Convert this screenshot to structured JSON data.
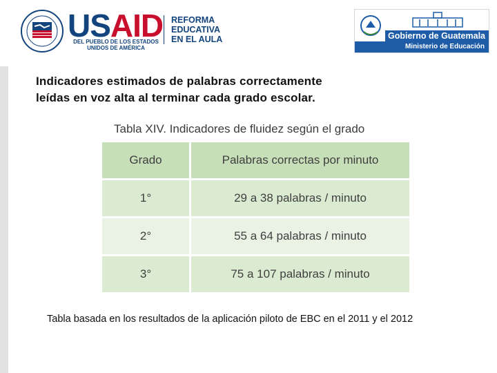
{
  "header": {
    "usaid": {
      "word_us": "US",
      "word_aid": "AID",
      "subtitle_line1": "DEL PUEBLO DE LOS ESTADOS",
      "subtitle_line2": "UNIDOS DE AMÉRICA",
      "seal_icon": "usaid-handshake-seal-icon"
    },
    "program": {
      "line1": "REFORMA",
      "line2": "EDUCATIVA",
      "line3": "EN EL AULA"
    },
    "government": {
      "title": "Gobierno de Guatemala",
      "subtitle": "Ministerio de Educación",
      "crest_icon": "guatemala-coat-of-arms-icon",
      "building_icon": "palace-building-icon"
    }
  },
  "heading": {
    "line1": "Indicadores estimados de palabras correctamente",
    "line2": "leídas en voz alta al terminar cada grado escolar."
  },
  "table": {
    "caption": "Tabla XIV. Indicadores de fluidez según el grado",
    "headers": [
      "Grado",
      "Palabras correctas por minuto"
    ],
    "rows": [
      [
        "1°",
        "29 a 38 palabras / minuto"
      ],
      [
        "2°",
        "55 a 64 palabras / minuto"
      ],
      [
        "3°",
        "75 a 107 palabras / minuto"
      ]
    ]
  },
  "note": "Tabla basada en los resultados de la aplicación piloto de EBC en el 2011 y el 2012",
  "colors": {
    "usaid_blue": "#13447d",
    "usaid_red": "#c8102e",
    "gov_blue": "#1e5ca8",
    "table_header": "#c7dfb8",
    "table_row_odd": "#dbebd1",
    "table_row_even": "#eaf2e4"
  }
}
